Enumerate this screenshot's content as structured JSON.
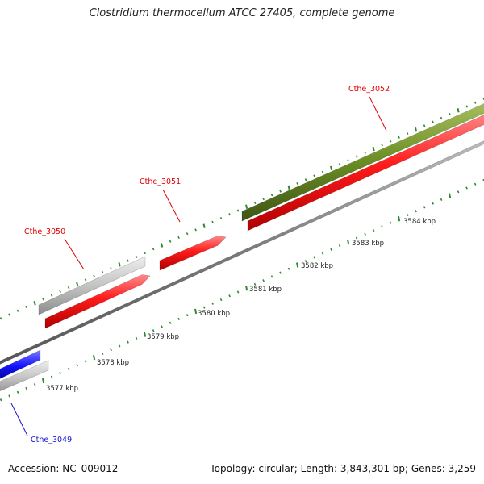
{
  "title": "Clostridium thermocellum ATCC 27405, complete genome",
  "footer": {
    "accession": "Accession: NC_009012",
    "summary": "Topology: circular; Length: 3,843,301 bp; Genes: 3,259"
  },
  "colors": {
    "background": "#ffffff",
    "backbone": "#8a8a8a",
    "tick": "#2f8a2f",
    "gene_red": "#ff2020",
    "gene_grey": "#c8c8c8",
    "gene_olive": "#6b8e23",
    "gene_blue": "#1414ff",
    "label_red": "#e00000",
    "label_blue": "#1414d0"
  },
  "scale_labels": [
    "3577 kbp",
    "3578 kbp",
    "3579 kbp",
    "3580 kbp",
    "3581 kbp",
    "3582 kbp",
    "3583 kbp",
    "3584 kbp"
  ],
  "genes": [
    {
      "id": "Cthe_3049",
      "color": "blue"
    },
    {
      "id": "Cthe_3050",
      "color": "red"
    },
    {
      "id": "Cthe_3051",
      "color": "red"
    },
    {
      "id": "Cthe_3052",
      "color": "red"
    }
  ]
}
